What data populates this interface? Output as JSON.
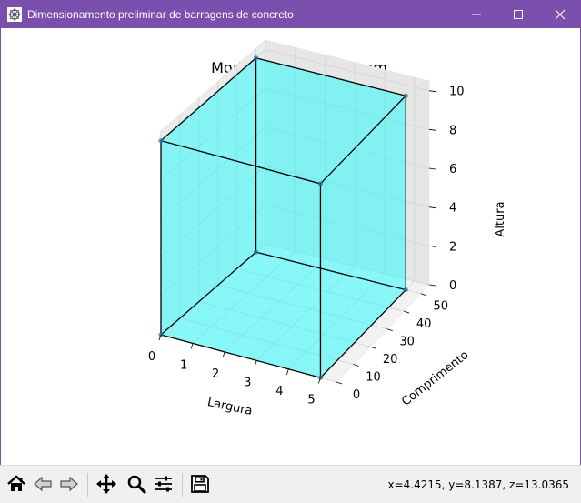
{
  "window": {
    "title": "Dimensionamento preliminar de barragens de concreto",
    "controls": [
      "minimize",
      "maximize",
      "close"
    ],
    "title_bar_color": "#7b4fae"
  },
  "chart_data": {
    "type": "3d-box",
    "title": "Modelo 3D da barragem",
    "xlabel": "Largura",
    "ylabel": "Comprimento",
    "zlabel": "Altura",
    "xlim": [
      0,
      5.5
    ],
    "ylim": [
      0,
      55
    ],
    "zlim": [
      0,
      10.5
    ],
    "x_ticks": [
      "0",
      "1",
      "2",
      "3",
      "4",
      "5"
    ],
    "y_ticks": [
      "0",
      "10",
      "20",
      "30",
      "40",
      "50"
    ],
    "z_ticks": [
      "0",
      "2",
      "4",
      "6",
      "8",
      "10"
    ],
    "box": {
      "width": 5,
      "length": 50,
      "height": 10
    },
    "face_color": "#00ffff",
    "edge_color": "#000000",
    "vertex_color": "#1f77b4",
    "grid": true
  },
  "toolbar": {
    "buttons": [
      {
        "name": "home-icon"
      },
      {
        "name": "back-icon"
      },
      {
        "name": "forward-icon"
      },
      {
        "name": "pan-icon"
      },
      {
        "name": "zoom-icon"
      },
      {
        "name": "configure-subplots-icon"
      },
      {
        "name": "save-icon"
      }
    ],
    "coords": "x=4.4215, y=8.1387, z=13.0365"
  }
}
